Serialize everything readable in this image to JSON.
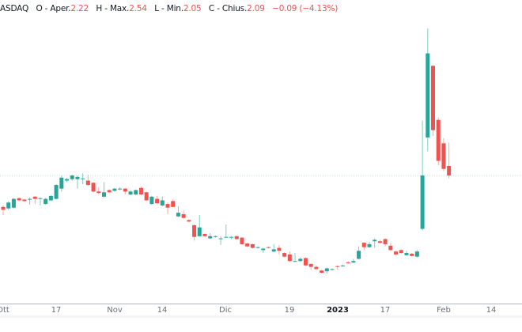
{
  "legend": {
    "symbol": "ASDAQ",
    "open_label": "O - Aper.",
    "open": "2.22",
    "high_label": "H - Max.",
    "high": "2.54",
    "low_label": "L - Min.",
    "low": "2.05",
    "close_label": "C - Chius.",
    "close": "2.09",
    "change": "−0.09 (−4.13%)"
  },
  "colors": {
    "up": "#26a69a",
    "down": "#ef5350",
    "up_wick": "#80cbc4",
    "down_wick": "#f7a9a7"
  },
  "chart_data": {
    "type": "candlestick",
    "title": "",
    "xlabel": "",
    "ylabel": "",
    "ylim": [
      0.6,
      4.49
    ],
    "last_price": 2.09,
    "x_tick_labels": [
      "Ott",
      "17",
      "Nov",
      "14",
      "Dic",
      "19",
      "2023",
      "17",
      "Feb",
      "14"
    ],
    "candles": [
      [
        1.66,
        1.68,
        1.55,
        1.62
      ],
      [
        1.64,
        1.74,
        1.62,
        1.72
      ],
      [
        1.65,
        1.78,
        1.64,
        1.77
      ],
      [
        1.78,
        1.79,
        1.74,
        1.75
      ],
      [
        1.76,
        1.77,
        1.73,
        1.74
      ],
      [
        1.76,
        1.79,
        1.69,
        1.77
      ],
      [
        1.8,
        1.81,
        1.7,
        1.77
      ],
      [
        1.77,
        1.79,
        1.68,
        1.78
      ],
      [
        1.7,
        1.78,
        1.69,
        1.77
      ],
      [
        1.75,
        1.82,
        1.74,
        1.81
      ],
      [
        1.77,
        1.97,
        1.76,
        1.96
      ],
      [
        1.91,
        2.09,
        1.87,
        2.06
      ],
      [
        2.02,
        2.06,
        2.0,
        2.04
      ],
      [
        2.04,
        2.1,
        2.02,
        2.09
      ],
      [
        2.04,
        2.09,
        1.91,
        2.07
      ],
      [
        2.04,
        2.12,
        1.97,
        2.05
      ],
      [
        2.02,
        2.1,
        1.95,
        1.96
      ],
      [
        1.99,
        2.0,
        1.86,
        1.87
      ],
      [
        1.87,
        1.93,
        1.83,
        1.85
      ],
      [
        1.8,
        2.0,
        1.79,
        1.86
      ],
      [
        1.89,
        1.9,
        1.85,
        1.86
      ],
      [
        1.88,
        1.92,
        1.87,
        1.91
      ],
      [
        1.9,
        1.93,
        1.89,
        1.91
      ],
      [
        1.91,
        1.92,
        1.83,
        1.87
      ],
      [
        1.83,
        1.89,
        1.82,
        1.87
      ],
      [
        1.83,
        1.9,
        1.82,
        1.89
      ],
      [
        1.92,
        1.94,
        1.82,
        1.83
      ],
      [
        1.86,
        1.87,
        1.74,
        1.75
      ],
      [
        1.7,
        1.81,
        1.69,
        1.8
      ],
      [
        1.77,
        1.81,
        1.7,
        1.71
      ],
      [
        1.68,
        1.8,
        1.67,
        1.75
      ],
      [
        1.7,
        1.72,
        1.56,
        1.65
      ],
      [
        1.74,
        1.76,
        1.65,
        1.66
      ],
      [
        1.53,
        1.67,
        1.52,
        1.58
      ],
      [
        1.56,
        1.61,
        1.5,
        1.51
      ],
      [
        1.48,
        1.49,
        1.45,
        1.46
      ],
      [
        1.41,
        1.42,
        1.2,
        1.25
      ],
      [
        1.26,
        1.55,
        1.25,
        1.38
      ],
      [
        1.29,
        1.3,
        1.25,
        1.26
      ],
      [
        1.23,
        1.3,
        1.22,
        1.26
      ],
      [
        1.25,
        1.27,
        1.24,
        1.26
      ],
      [
        1.22,
        1.26,
        1.14,
        1.23
      ],
      [
        1.25,
        1.42,
        1.24,
        1.25
      ],
      [
        1.24,
        1.26,
        1.22,
        1.25
      ],
      [
        1.26,
        1.27,
        1.21,
        1.22
      ],
      [
        1.24,
        1.25,
        1.14,
        1.15
      ],
      [
        1.16,
        1.17,
        1.11,
        1.12
      ],
      [
        1.15,
        1.16,
        1.09,
        1.1
      ],
      [
        1.1,
        1.12,
        1.09,
        1.11
      ],
      [
        1.07,
        1.1,
        1.03,
        1.09
      ],
      [
        1.11,
        1.12,
        1.09,
        1.1
      ],
      [
        1.05,
        1.15,
        1.04,
        1.08
      ],
      [
        1.1,
        1.14,
        1.01,
        1.06
      ],
      [
        1.03,
        1.04,
        0.97,
        0.98
      ],
      [
        1.01,
        1.05,
        0.91,
        0.92
      ],
      [
        0.92,
        1.03,
        0.91,
        0.92
      ],
      [
        0.92,
        0.97,
        0.91,
        0.95
      ],
      [
        0.96,
        0.97,
        0.85,
        0.86
      ],
      [
        0.88,
        0.89,
        0.8,
        0.84
      ],
      [
        0.84,
        0.86,
        0.8,
        0.81
      ],
      [
        0.79,
        0.8,
        0.75,
        0.76
      ],
      [
        0.78,
        0.83,
        0.75,
        0.82
      ],
      [
        0.8,
        0.82,
        0.79,
        0.81
      ],
      [
        0.85,
        0.86,
        0.8,
        0.84
      ],
      [
        0.85,
        0.87,
        0.84,
        0.86
      ],
      [
        0.9,
        0.92,
        0.88,
        0.89
      ],
      [
        0.9,
        0.95,
        0.89,
        0.92
      ],
      [
        0.95,
        1.12,
        0.94,
        1.06
      ],
      [
        1.17,
        1.18,
        1.07,
        1.11
      ],
      [
        1.11,
        1.18,
        1.1,
        1.15
      ],
      [
        1.19,
        1.23,
        1.1,
        1.21
      ],
      [
        1.19,
        1.21,
        1.16,
        1.17
      ],
      [
        1.22,
        1.23,
        1.12,
        1.15
      ],
      [
        1.13,
        1.17,
        1.06,
        1.07
      ],
      [
        1.05,
        1.06,
        1.0,
        1.01
      ],
      [
        1.07,
        1.08,
        1.02,
        1.03
      ],
      [
        1.0,
        1.06,
        0.99,
        1.03
      ],
      [
        1.02,
        1.03,
        0.98,
        0.99
      ],
      [
        0.98,
        1.07,
        0.97,
        1.05
      ],
      [
        1.36,
        2.84,
        1.34,
        2.09
      ],
      [
        2.61,
        4.1,
        2.42,
        3.76
      ],
      [
        3.59,
        3.6,
        2.63,
        2.71
      ],
      [
        2.85,
        2.88,
        2.23,
        2.29
      ],
      [
        2.53,
        2.6,
        2.15,
        2.18
      ],
      [
        2.22,
        2.54,
        2.05,
        2.09
      ]
    ]
  }
}
